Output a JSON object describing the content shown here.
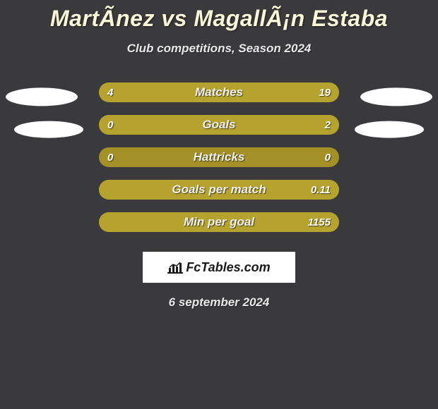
{
  "title": "MartÃ­nez vs MagallÃ¡n Estaba",
  "subtitle": "Club competitions, Season 2024",
  "date": "6 september 2024",
  "logo_text": "FcTables.com",
  "background_color": "#3a3a3c",
  "bar_base_color": "#a39128",
  "bar_fill_color": "#b6a22e",
  "rows": [
    {
      "label": "Matches",
      "left": "4",
      "right": "19",
      "left_pct": 17,
      "right_pct": 83,
      "show_avatars": true,
      "avatar_size": "large"
    },
    {
      "label": "Goals",
      "left": "0",
      "right": "2",
      "left_pct": 0,
      "right_pct": 100,
      "show_avatars": true,
      "avatar_size": "small"
    },
    {
      "label": "Hattricks",
      "left": "0",
      "right": "0",
      "left_pct": 0,
      "right_pct": 0,
      "show_avatars": false
    },
    {
      "label": "Goals per match",
      "left": "",
      "right": "0.11",
      "left_pct": 0,
      "right_pct": 100,
      "show_avatars": false
    },
    {
      "label": "Min per goal",
      "left": "",
      "right": "1155",
      "left_pct": 0,
      "right_pct": 100,
      "show_avatars": false
    }
  ]
}
